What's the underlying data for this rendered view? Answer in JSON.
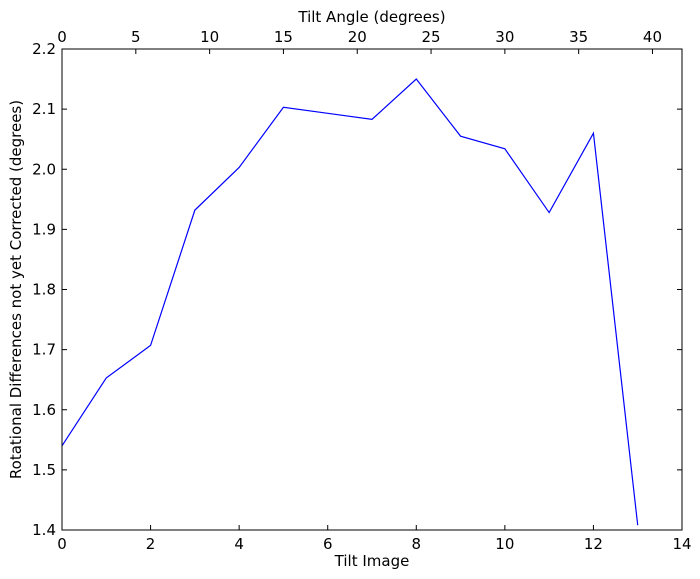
{
  "chart_data": {
    "type": "line",
    "xlabel": "Tilt Image",
    "ylabel": "Rotational Differences not yet Corrected (degrees)",
    "top_xlabel": "Tilt Angle (degrees)",
    "xlim": [
      0,
      14
    ],
    "ylim": [
      1.4,
      2.2
    ],
    "top_xlim": [
      0,
      42
    ],
    "x_ticks": [
      "0",
      "2",
      "4",
      "6",
      "8",
      "10",
      "12",
      "14"
    ],
    "y_ticks": [
      "1.4",
      "1.5",
      "1.6",
      "1.7",
      "1.8",
      "1.9",
      "2.0",
      "2.1",
      "2.2"
    ],
    "top_x_ticks": [
      "0",
      "5",
      "10",
      "15",
      "20",
      "25",
      "30",
      "35",
      "40"
    ],
    "grid": false,
    "series": [
      {
        "color": "#0000ff",
        "x": [
          0,
          1,
          2,
          3,
          4,
          5,
          6,
          7,
          8,
          9,
          10,
          11,
          12,
          13
        ],
        "y": [
          1.54,
          1.653,
          1.707,
          1.932,
          2.003,
          2.103,
          2.093,
          2.083,
          2.15,
          2.055,
          2.034,
          1.928,
          2.06,
          1.408
        ]
      }
    ]
  }
}
